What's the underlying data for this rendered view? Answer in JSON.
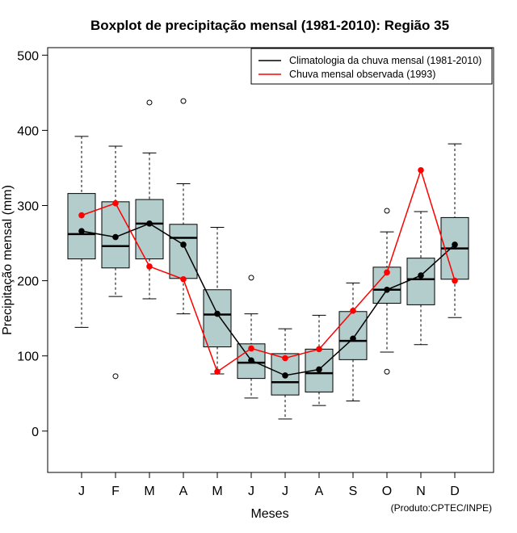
{
  "chart_data": {
    "type": "boxplot",
    "title": "Boxplot de precipitação mensal (1981-2010): Região 35",
    "xlabel": "Meses",
    "ylabel": "Precipitação mensal (mm)",
    "ylim": [
      -55,
      510
    ],
    "yticks": [
      0,
      100,
      200,
      300,
      400,
      500
    ],
    "categories": [
      "J",
      "F",
      "M",
      "A",
      "M",
      "J",
      "J",
      "A",
      "S",
      "O",
      "N",
      "D"
    ],
    "boxes": [
      {
        "whisker_low": 138,
        "q1": 229,
        "median": 262,
        "q3": 316,
        "whisker_high": 392,
        "outliers": []
      },
      {
        "whisker_low": 179,
        "q1": 217,
        "median": 246,
        "q3": 305,
        "whisker_high": 379,
        "outliers": [
          73
        ]
      },
      {
        "whisker_low": 176,
        "q1": 229,
        "median": 276,
        "q3": 308,
        "whisker_high": 370,
        "outliers": [
          437
        ]
      },
      {
        "whisker_low": 156,
        "q1": 203,
        "median": 257,
        "q3": 275,
        "whisker_high": 329,
        "outliers": [
          439
        ]
      },
      {
        "whisker_low": 76,
        "q1": 112,
        "median": 155,
        "q3": 188,
        "whisker_high": 271,
        "outliers": []
      },
      {
        "whisker_low": 44,
        "q1": 70,
        "median": 91,
        "q3": 116,
        "whisker_high": 156,
        "outliers": [
          204
        ]
      },
      {
        "whisker_low": 16,
        "q1": 48,
        "median": 65,
        "q3": 103,
        "whisker_high": 136,
        "outliers": []
      },
      {
        "whisker_low": 34,
        "q1": 52,
        "median": 77,
        "q3": 109,
        "whisker_high": 154,
        "outliers": []
      },
      {
        "whisker_low": 40,
        "q1": 95,
        "median": 120,
        "q3": 159,
        "whisker_high": 197,
        "outliers": []
      },
      {
        "whisker_low": 105,
        "q1": 170,
        "median": 188,
        "q3": 218,
        "whisker_high": 265,
        "outliers": [
          79,
          293
        ]
      },
      {
        "whisker_low": 115,
        "q1": 168,
        "median": 202,
        "q3": 230,
        "whisker_high": 292,
        "outliers": []
      },
      {
        "whisker_low": 151,
        "q1": 202,
        "median": 243,
        "q3": 284,
        "whisker_high": 382,
        "outliers": []
      }
    ],
    "series": [
      {
        "name": "Climatologia da chuva mensal (1981-2010)",
        "color": "#000000",
        "values": [
          266,
          258,
          276,
          248,
          156,
          94,
          74,
          82,
          123,
          188,
          207,
          248
        ]
      },
      {
        "name": "Chuva mensal observada (1993)",
        "color": "#ff0000",
        "values": [
          287,
          303,
          219,
          202,
          79,
          110,
          97,
          109,
          160,
          211,
          347,
          200
        ]
      }
    ],
    "box_color": "#b3cccc",
    "legend_position": "top-right",
    "credit": "(Produto:CPTEC/INPE)"
  }
}
